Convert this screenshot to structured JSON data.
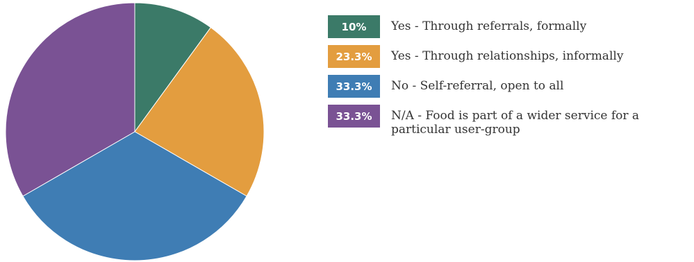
{
  "chart_data": {
    "type": "pie",
    "title": "",
    "slices": [
      {
        "label": "Yes - Through referrals, formally",
        "value": 10,
        "display": "10%",
        "color": "#3b7a68"
      },
      {
        "label": "Yes - Through relationships, informally",
        "value": 23.3,
        "display": "23.3%",
        "color": "#e39d3f"
      },
      {
        "label": "No - Self-referral, open to all",
        "value": 33.3,
        "display": "33.3%",
        "color": "#3f7db4"
      },
      {
        "label": "N/A - Food is part of a wider service for a particular user-group",
        "value": 33.3,
        "display": "33.3%",
        "color": "#7a5294"
      }
    ],
    "start_angle_deg": 0,
    "direction": "clockwise",
    "legend_position": "right"
  }
}
